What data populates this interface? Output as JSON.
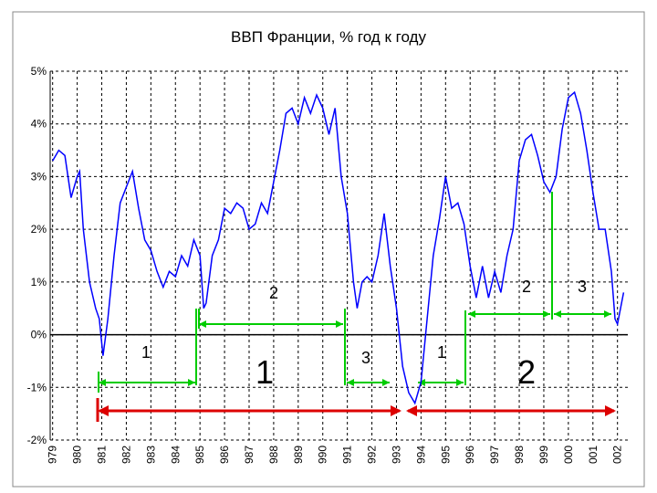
{
  "chart_data": {
    "type": "line",
    "title": "ВВП Франции, % год к году",
    "x": [
      1979.0,
      1979.25,
      1979.5,
      1979.75,
      1980.0,
      1980.1,
      1980.25,
      1980.5,
      1980.75,
      1980.9,
      1981.05,
      1981.25,
      1981.5,
      1981.75,
      1982.0,
      1982.25,
      1982.5,
      1982.75,
      1983.0,
      1983.25,
      1983.5,
      1983.75,
      1984.0,
      1984.25,
      1984.5,
      1984.75,
      1985.0,
      1985.15,
      1985.25,
      1985.5,
      1985.75,
      1986.0,
      1986.25,
      1986.5,
      1986.75,
      1987.0,
      1987.25,
      1987.5,
      1987.75,
      1988.0,
      1988.25,
      1988.5,
      1988.75,
      1989.0,
      1989.25,
      1989.5,
      1989.75,
      1990.0,
      1990.25,
      1990.5,
      1990.75,
      1991.0,
      1991.25,
      1991.4,
      1991.6,
      1991.8,
      1992.0,
      1992.25,
      1992.5,
      1992.75,
      1993.0,
      1993.25,
      1993.5,
      1993.75,
      1994.0,
      1994.25,
      1994.5,
      1994.75,
      1995.0,
      1995.25,
      1995.5,
      1995.75,
      1996.0,
      1996.25,
      1996.5,
      1996.75,
      1997.0,
      1997.25,
      1997.5,
      1997.75,
      1998.0,
      1998.25,
      1998.5,
      1998.75,
      1999.0,
      1999.25,
      1999.5,
      1999.75,
      2000.0,
      2000.25,
      2000.5,
      2000.75,
      2001.0,
      2001.25,
      2001.5,
      2001.75,
      2001.9,
      2002.0,
      2002.25
    ],
    "values": [
      3.3,
      3.5,
      3.4,
      2.6,
      3.0,
      3.1,
      2.0,
      1.0,
      0.5,
      0.3,
      -0.4,
      0.3,
      1.5,
      2.5,
      2.8,
      3.1,
      2.4,
      1.8,
      1.6,
      1.2,
      0.9,
      1.2,
      1.1,
      1.5,
      1.3,
      1.8,
      1.5,
      0.5,
      0.6,
      1.5,
      1.8,
      2.4,
      2.3,
      2.5,
      2.4,
      2.0,
      2.1,
      2.5,
      2.3,
      2.9,
      3.5,
      4.2,
      4.3,
      4.0,
      4.5,
      4.2,
      4.55,
      4.3,
      3.8,
      4.3,
      3.0,
      2.3,
      1.0,
      0.5,
      1.0,
      1.1,
      1.0,
      1.5,
      2.3,
      1.3,
      0.5,
      -0.6,
      -1.1,
      -1.3,
      -0.9,
      0.3,
      1.5,
      2.2,
      3.0,
      2.4,
      2.5,
      2.1,
      1.3,
      0.7,
      1.3,
      0.7,
      1.2,
      0.8,
      1.5,
      2.0,
      3.3,
      3.7,
      3.8,
      3.4,
      2.9,
      2.7,
      3.0,
      3.9,
      4.5,
      4.6,
      4.2,
      3.5,
      2.7,
      2.0,
      2.0,
      1.2,
      0.3,
      0.2,
      0.8
    ],
    "color": "#0000ff",
    "xlim": [
      1978.9,
      2002.42
    ],
    "ylim": [
      -2,
      5
    ],
    "yticks": [
      {
        "value": 5,
        "label": "5%"
      },
      {
        "value": 4,
        "label": "4%"
      },
      {
        "value": 3,
        "label": "3%"
      },
      {
        "value": 2,
        "label": "2%"
      },
      {
        "value": 1,
        "label": "1%"
      },
      {
        "value": 0,
        "label": "0%"
      },
      {
        "value": -1,
        "label": "-1%"
      },
      {
        "value": -2,
        "label": "-2%"
      }
    ],
    "xticks": [
      {
        "value": 1979,
        "label": "979"
      },
      {
        "value": 1980,
        "label": "980"
      },
      {
        "value": 1981,
        "label": "981"
      },
      {
        "value": 1982,
        "label": "982"
      },
      {
        "value": 1983,
        "label": "983"
      },
      {
        "value": 1984,
        "label": "984"
      },
      {
        "value": 1985,
        "label": "985"
      },
      {
        "value": 1986,
        "label": "986"
      },
      {
        "value": 1987,
        "label": "987"
      },
      {
        "value": 1988,
        "label": "988"
      },
      {
        "value": 1989,
        "label": "989"
      },
      {
        "value": 1990,
        "label": "990"
      },
      {
        "value": 1991,
        "label": "991"
      },
      {
        "value": 1992,
        "label": "992"
      },
      {
        "value": 1993,
        "label": "993"
      },
      {
        "value": 1994,
        "label": "994"
      },
      {
        "value": 1995,
        "label": "995"
      },
      {
        "value": 1996,
        "label": "996"
      },
      {
        "value": 1997,
        "label": "997"
      },
      {
        "value": 1998,
        "label": "998"
      },
      {
        "value": 1999,
        "label": "999"
      },
      {
        "value": 2000,
        "label": "000"
      },
      {
        "value": 2001,
        "label": "001"
      },
      {
        "value": 2002,
        "label": "002"
      }
    ],
    "grid": true,
    "annotations": [
      "1",
      "2",
      "3",
      "1",
      "2",
      "3",
      "1",
      "2"
    ]
  }
}
